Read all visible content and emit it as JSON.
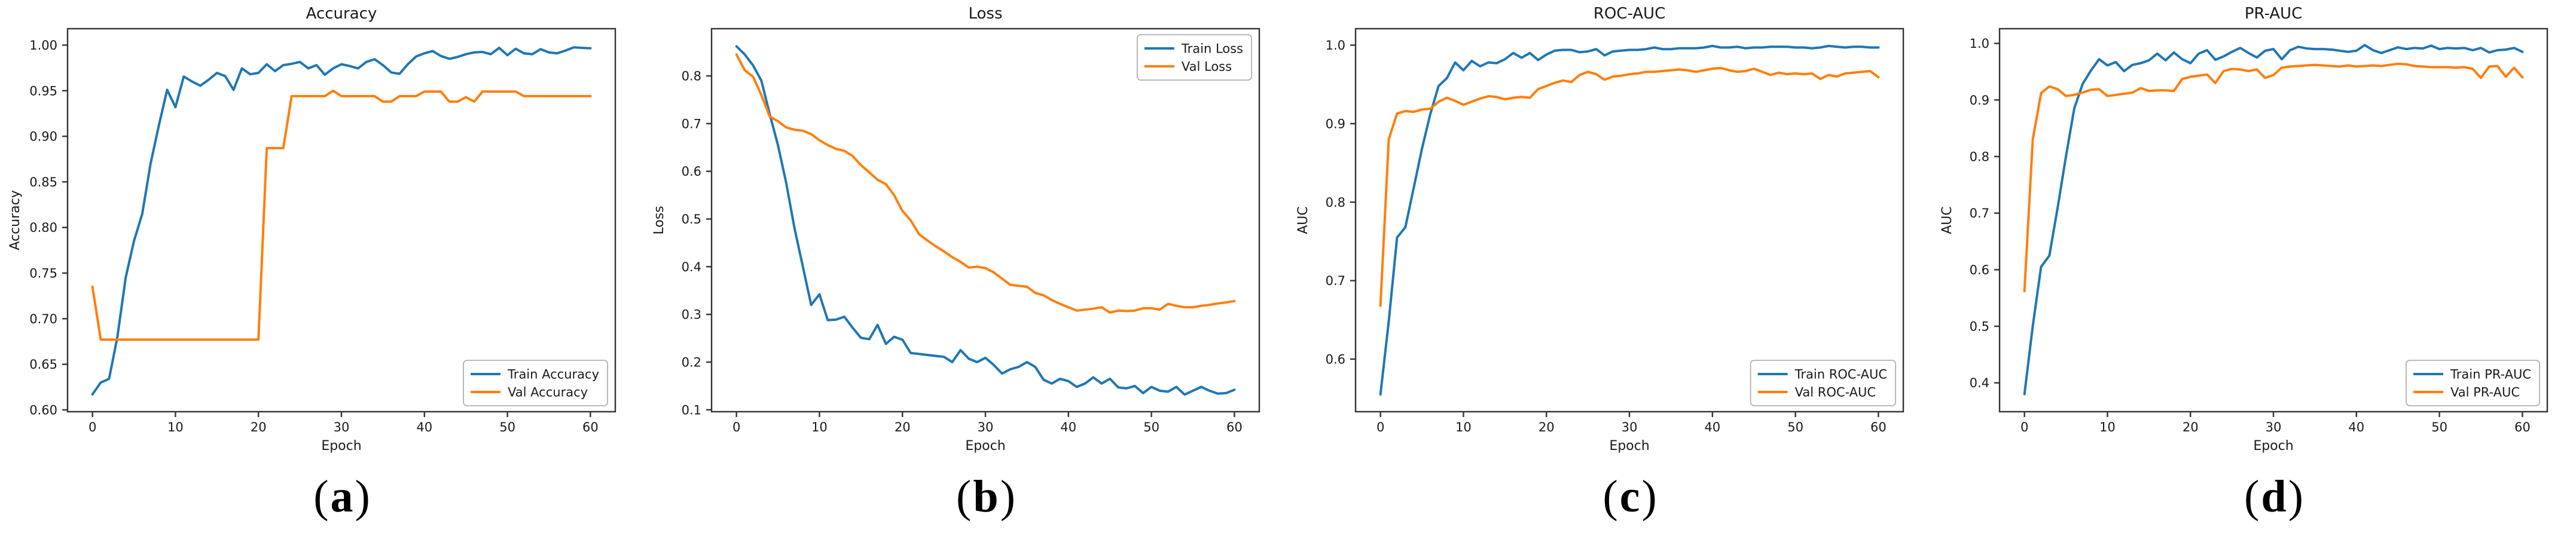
{
  "figure": {
    "background": "#ffffff",
    "text_color": "#1a1a1a",
    "spine_color": "#333333",
    "legend_border_color": "#b0b0b0",
    "series_colors": {
      "train": "#1f77b4",
      "val": "#ff7f0e"
    }
  },
  "captions": [
    {
      "open": "(",
      "letter": "a",
      "close": ")"
    },
    {
      "open": "(",
      "letter": "b",
      "close": ")"
    },
    {
      "open": "(",
      "letter": "c",
      "close": ")"
    },
    {
      "open": "(",
      "letter": "d",
      "close": ")"
    }
  ],
  "chart_data": [
    {
      "type": "line",
      "title": "Accuracy",
      "xlabel": "Epoch",
      "ylabel": "Accuracy",
      "xlim": [
        -3,
        63
      ],
      "ylim": [
        0.598,
        1.018
      ],
      "xticks": [
        0,
        10,
        20,
        30,
        40,
        50,
        60
      ],
      "yticks": [
        0.6,
        0.65,
        0.7,
        0.75,
        0.8,
        0.85,
        0.9,
        0.95,
        1.0
      ],
      "ytick_labels": [
        "0.60",
        "0.65",
        "0.70",
        "0.75",
        "0.80",
        "0.85",
        "0.90",
        "0.95",
        "1.00"
      ],
      "legend_position": "lower right",
      "grid": false,
      "epochs": {
        "start": 0,
        "end": 60,
        "step": 1
      },
      "series": [
        {
          "name": "Train Accuracy",
          "color": "#1f77b4",
          "values": [
            0.617,
            0.63,
            0.634,
            0.68,
            0.745,
            0.785,
            0.815,
            0.87,
            0.912,
            0.951,
            0.932,
            0.9655,
            0.96,
            0.9555,
            0.962,
            0.9695,
            0.966,
            0.951,
            0.9745,
            0.968,
            0.9695,
            0.979,
            0.9715,
            0.978,
            0.9795,
            0.9815,
            0.9745,
            0.978,
            0.9675,
            0.9745,
            0.979,
            0.977,
            0.9745,
            0.9815,
            0.9845,
            0.978,
            0.97,
            0.9685,
            0.979,
            0.9875,
            0.991,
            0.9935,
            0.988,
            0.985,
            0.987,
            0.99,
            0.992,
            0.9925,
            0.99,
            0.997,
            0.989,
            0.996,
            0.991,
            0.99,
            0.9955,
            0.992,
            0.991,
            0.994,
            0.9975,
            0.997,
            0.9965
          ]
        },
        {
          "name": "Val Accuracy",
          "color": "#ff7f0e",
          "values": [
            0.735,
            0.677,
            0.677,
            0.677,
            0.677,
            0.677,
            0.677,
            0.677,
            0.677,
            0.677,
            0.677,
            0.677,
            0.677,
            0.677,
            0.677,
            0.677,
            0.677,
            0.677,
            0.677,
            0.677,
            0.677,
            0.887,
            0.887,
            0.887,
            0.944,
            0.944,
            0.944,
            0.944,
            0.944,
            0.95,
            0.944,
            0.944,
            0.944,
            0.944,
            0.944,
            0.938,
            0.938,
            0.944,
            0.944,
            0.944,
            0.949,
            0.949,
            0.949,
            0.938,
            0.938,
            0.943,
            0.938,
            0.949,
            0.949,
            0.949,
            0.949,
            0.949,
            0.944,
            0.944,
            0.944,
            0.944,
            0.944,
            0.944,
            0.944,
            0.944,
            0.944
          ]
        }
      ]
    },
    {
      "type": "line",
      "title": "Loss",
      "xlabel": "Epoch",
      "ylabel": "Loss",
      "xlim": [
        -3,
        63
      ],
      "ylim": [
        0.096,
        0.899
      ],
      "xticks": [
        0,
        10,
        20,
        30,
        40,
        50,
        60
      ],
      "yticks": [
        0.1,
        0.2,
        0.3,
        0.4,
        0.5,
        0.6,
        0.7,
        0.8
      ],
      "ytick_labels": [
        "0.1",
        "0.2",
        "0.3",
        "0.4",
        "0.5",
        "0.6",
        "0.7",
        "0.8"
      ],
      "legend_position": "upper right",
      "grid": false,
      "epochs": {
        "start": 0,
        "end": 60,
        "step": 1
      },
      "series": [
        {
          "name": "Train Loss",
          "color": "#1f77b4",
          "values": [
            0.862,
            0.845,
            0.822,
            0.79,
            0.72,
            0.655,
            0.575,
            0.48,
            0.4,
            0.32,
            0.342,
            0.288,
            0.289,
            0.295,
            0.272,
            0.251,
            0.248,
            0.278,
            0.238,
            0.253,
            0.247,
            0.219,
            0.217,
            0.215,
            0.213,
            0.211,
            0.2,
            0.225,
            0.207,
            0.2,
            0.209,
            0.194,
            0.176,
            0.185,
            0.19,
            0.2,
            0.19,
            0.163,
            0.155,
            0.165,
            0.16,
            0.148,
            0.155,
            0.168,
            0.155,
            0.165,
            0.147,
            0.145,
            0.15,
            0.135,
            0.148,
            0.14,
            0.138,
            0.148,
            0.132,
            0.14,
            0.148,
            0.14,
            0.134,
            0.135,
            0.142
          ]
        },
        {
          "name": "Val Loss",
          "color": "#ff7f0e",
          "values": [
            0.845,
            0.812,
            0.798,
            0.76,
            0.715,
            0.705,
            0.692,
            0.687,
            0.685,
            0.678,
            0.665,
            0.655,
            0.647,
            0.643,
            0.632,
            0.613,
            0.598,
            0.582,
            0.573,
            0.55,
            0.517,
            0.497,
            0.468,
            0.455,
            0.443,
            0.432,
            0.42,
            0.41,
            0.398,
            0.4,
            0.397,
            0.388,
            0.375,
            0.362,
            0.36,
            0.358,
            0.345,
            0.34,
            0.33,
            0.322,
            0.315,
            0.308,
            0.31,
            0.312,
            0.315,
            0.304,
            0.308,
            0.307,
            0.308,
            0.313,
            0.313,
            0.31,
            0.322,
            0.318,
            0.315,
            0.315,
            0.318,
            0.32,
            0.323,
            0.325,
            0.328
          ]
        }
      ]
    },
    {
      "type": "line",
      "title": "ROC-AUC",
      "xlabel": "Epoch",
      "ylabel": "AUC",
      "xlim": [
        -3,
        63
      ],
      "ylim": [
        0.533,
        1.021
      ],
      "xticks": [
        0,
        10,
        20,
        30,
        40,
        50,
        60
      ],
      "yticks": [
        0.6,
        0.7,
        0.8,
        0.9,
        1.0
      ],
      "ytick_labels": [
        "0.6",
        "0.7",
        "0.8",
        "0.9",
        "1.0"
      ],
      "legend_position": "lower right",
      "grid": false,
      "epochs": {
        "start": 0,
        "end": 60,
        "step": 1
      },
      "series": [
        {
          "name": "Train ROC-AUC",
          "color": "#1f77b4",
          "values": [
            0.555,
            0.648,
            0.755,
            0.768,
            0.818,
            0.868,
            0.912,
            0.948,
            0.958,
            0.978,
            0.968,
            0.98,
            0.973,
            0.978,
            0.977,
            0.982,
            0.99,
            0.984,
            0.99,
            0.981,
            0.988,
            0.993,
            0.994,
            0.994,
            0.991,
            0.992,
            0.995,
            0.987,
            0.992,
            0.993,
            0.994,
            0.994,
            0.995,
            0.997,
            0.995,
            0.995,
            0.996,
            0.996,
            0.996,
            0.997,
            0.999,
            0.997,
            0.997,
            0.998,
            0.996,
            0.997,
            0.997,
            0.998,
            0.998,
            0.998,
            0.997,
            0.997,
            0.996,
            0.997,
            0.999,
            0.998,
            0.997,
            0.998,
            0.998,
            0.997,
            0.997
          ]
        },
        {
          "name": "Val ROC-AUC",
          "color": "#ff7f0e",
          "values": [
            0.668,
            0.88,
            0.913,
            0.916,
            0.915,
            0.918,
            0.919,
            0.928,
            0.933,
            0.929,
            0.924,
            0.928,
            0.932,
            0.935,
            0.934,
            0.931,
            0.933,
            0.934,
            0.933,
            0.944,
            0.948,
            0.952,
            0.955,
            0.953,
            0.962,
            0.966,
            0.963,
            0.956,
            0.96,
            0.961,
            0.963,
            0.964,
            0.966,
            0.966,
            0.967,
            0.968,
            0.969,
            0.968,
            0.966,
            0.968,
            0.97,
            0.971,
            0.968,
            0.966,
            0.967,
            0.97,
            0.966,
            0.962,
            0.965,
            0.963,
            0.964,
            0.963,
            0.964,
            0.957,
            0.962,
            0.96,
            0.964,
            0.965,
            0.966,
            0.967,
            0.959
          ]
        }
      ]
    },
    {
      "type": "line",
      "title": "PR-AUC",
      "xlabel": "Epoch",
      "ylabel": "AUC",
      "xlim": [
        -3,
        63
      ],
      "ylim": [
        0.349,
        1.026
      ],
      "xticks": [
        0,
        10,
        20,
        30,
        40,
        50,
        60
      ],
      "yticks": [
        0.4,
        0.5,
        0.6,
        0.7,
        0.8,
        0.9,
        1.0
      ],
      "ytick_labels": [
        "0.4",
        "0.5",
        "0.6",
        "0.7",
        "0.8",
        "0.9",
        "1.0"
      ],
      "legend_position": "lower right",
      "grid": false,
      "epochs": {
        "start": 0,
        "end": 60,
        "step": 1
      },
      "series": [
        {
          "name": "Train PR-AUC",
          "color": "#1f77b4",
          "values": [
            0.38,
            0.5,
            0.605,
            0.625,
            0.71,
            0.8,
            0.885,
            0.928,
            0.952,
            0.972,
            0.961,
            0.967,
            0.951,
            0.962,
            0.965,
            0.97,
            0.982,
            0.97,
            0.984,
            0.972,
            0.965,
            0.982,
            0.988,
            0.971,
            0.977,
            0.985,
            0.992,
            0.983,
            0.975,
            0.987,
            0.99,
            0.972,
            0.988,
            0.994,
            0.991,
            0.99,
            0.99,
            0.989,
            0.987,
            0.985,
            0.987,
            0.997,
            0.988,
            0.983,
            0.988,
            0.993,
            0.99,
            0.992,
            0.991,
            0.996,
            0.99,
            0.992,
            0.991,
            0.992,
            0.988,
            0.992,
            0.984,
            0.988,
            0.989,
            0.992,
            0.985
          ]
        },
        {
          "name": "Val PR-AUC",
          "color": "#ff7f0e",
          "values": [
            0.562,
            0.83,
            0.912,
            0.924,
            0.919,
            0.907,
            0.909,
            0.913,
            0.918,
            0.919,
            0.907,
            0.909,
            0.911,
            0.913,
            0.921,
            0.916,
            0.917,
            0.917,
            0.916,
            0.937,
            0.941,
            0.943,
            0.945,
            0.93,
            0.951,
            0.955,
            0.954,
            0.951,
            0.954,
            0.939,
            0.944,
            0.957,
            0.959,
            0.96,
            0.961,
            0.962,
            0.961,
            0.96,
            0.959,
            0.961,
            0.959,
            0.96,
            0.961,
            0.96,
            0.962,
            0.964,
            0.963,
            0.96,
            0.959,
            0.958,
            0.958,
            0.958,
            0.957,
            0.958,
            0.955,
            0.939,
            0.959,
            0.96,
            0.941,
            0.957,
            0.94
          ]
        }
      ]
    }
  ]
}
